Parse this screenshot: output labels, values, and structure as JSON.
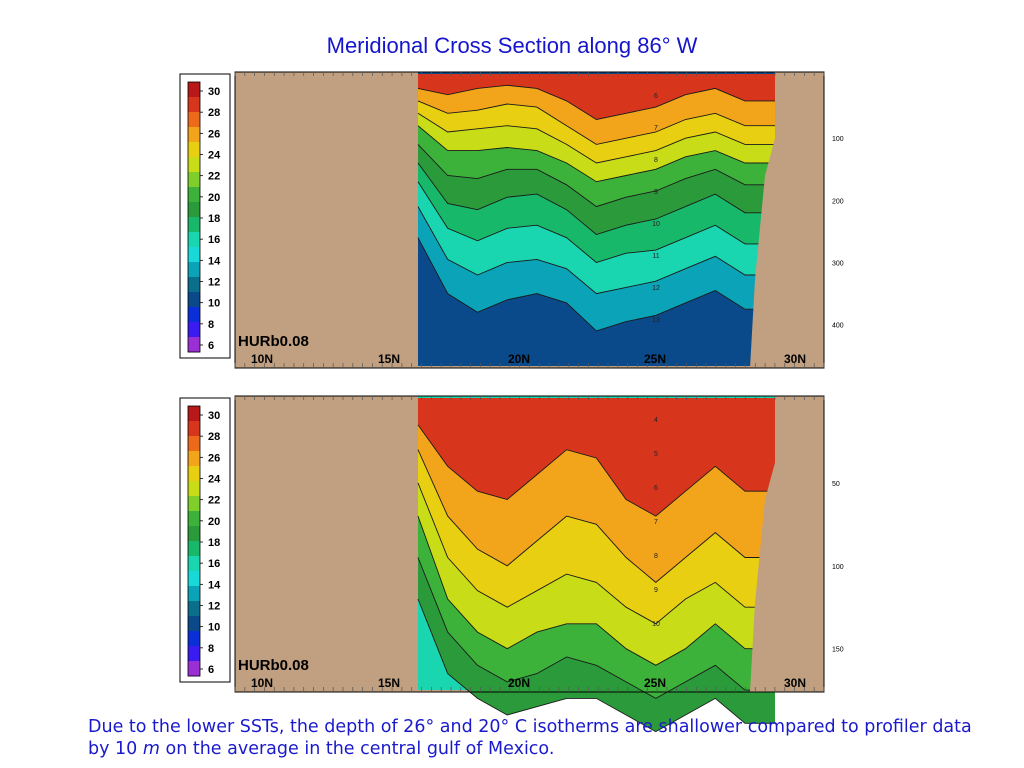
{
  "title": "Meridional Cross Section along 86° W",
  "caption": {
    "before": "Due to the lower SSTs, the depth of 26° and 20° C isotherms are shallower compared to profiler data by 10 ",
    "unit": "m",
    "after": " on the average in the central gulf of Mexico."
  },
  "colors": {
    "land": "#c0a080",
    "text_blue": "#1a1acc",
    "colorbar": [
      "#9b2fd6",
      "#3b1cf0",
      "#0a2ed8",
      "#0a4a8a",
      "#0a6f8a",
      "#0aa3b8",
      "#19d8d8",
      "#1ad6b0",
      "#18b86a",
      "#2a9a3a",
      "#3cb23a",
      "#7fce2a",
      "#c8dc18",
      "#e8cf12",
      "#f2a41a",
      "#ec6a1a",
      "#d8361c",
      "#b81818"
    ]
  },
  "chart_data": [
    {
      "type": "heatmap",
      "label": "HURb0.08",
      "x_ticks": [
        "10N",
        "15N",
        "20N",
        "25N",
        "30N"
      ],
      "colorbar_ticks": [
        30,
        28,
        26,
        24,
        22,
        20,
        18,
        16,
        14,
        12,
        10,
        8,
        6
      ],
      "depth_ticks": [
        100,
        200,
        300,
        400
      ],
      "contour_labels": [
        "6",
        "7",
        "8",
        "9",
        "10",
        "11",
        "12",
        "13"
      ],
      "isotherms": [
        {
          "temp": 28,
          "depth": [
            20,
            30,
            20,
            15,
            20,
            40,
            70,
            60,
            50,
            30,
            20,
            40
          ]
        },
        {
          "temp": 26,
          "depth": [
            40,
            60,
            55,
            45,
            50,
            80,
            110,
            100,
            90,
            70,
            60,
            80
          ]
        },
        {
          "temp": 24,
          "depth": [
            60,
            90,
            85,
            80,
            85,
            110,
            140,
            130,
            120,
            100,
            90,
            110
          ]
        },
        {
          "temp": 22,
          "depth": [
            80,
            120,
            120,
            115,
            120,
            140,
            170,
            160,
            150,
            130,
            120,
            140
          ]
        },
        {
          "temp": 20,
          "depth": [
            110,
            160,
            165,
            150,
            150,
            175,
            210,
            195,
            185,
            165,
            150,
            175
          ]
        },
        {
          "temp": 18,
          "depth": [
            140,
            205,
            215,
            195,
            190,
            215,
            255,
            240,
            230,
            210,
            190,
            220
          ]
        },
        {
          "temp": 16,
          "depth": [
            170,
            245,
            265,
            245,
            240,
            260,
            300,
            285,
            280,
            260,
            240,
            270
          ]
        },
        {
          "temp": 14,
          "depth": [
            210,
            295,
            320,
            300,
            295,
            310,
            350,
            340,
            330,
            310,
            290,
            320
          ]
        },
        {
          "temp": 12,
          "depth": [
            260,
            350,
            380,
            360,
            350,
            365,
            410,
            395,
            385,
            365,
            345,
            375
          ]
        }
      ]
    },
    {
      "type": "heatmap",
      "label": "HURb0.08",
      "x_ticks": [
        "10N",
        "15N",
        "20N",
        "25N",
        "30N"
      ],
      "colorbar_ticks": [
        30,
        28,
        26,
        24,
        22,
        20,
        18,
        16,
        14,
        12,
        10,
        8,
        6
      ],
      "depth_ticks": [
        50,
        100,
        150
      ],
      "contour_labels": [
        "4",
        "5",
        "6",
        "7",
        "8",
        "9",
        "10"
      ],
      "isotherms": [
        {
          "temp": 28,
          "depth": [
            15,
            40,
            55,
            60,
            45,
            30,
            35,
            60,
            70,
            55,
            40,
            55
          ]
        },
        {
          "temp": 26,
          "depth": [
            30,
            70,
            90,
            100,
            85,
            70,
            75,
            95,
            110,
            95,
            80,
            95
          ]
        },
        {
          "temp": 24,
          "depth": [
            50,
            95,
            115,
            125,
            115,
            105,
            110,
            125,
            135,
            120,
            110,
            125
          ]
        },
        {
          "temp": 22,
          "depth": [
            70,
            120,
            140,
            150,
            140,
            135,
            135,
            150,
            160,
            150,
            135,
            150
          ]
        },
        {
          "temp": 20,
          "depth": [
            95,
            140,
            160,
            170,
            165,
            155,
            160,
            170,
            180,
            170,
            160,
            175
          ]
        },
        {
          "temp": 18,
          "depth": [
            120,
            165,
            180,
            190,
            185,
            180,
            180,
            190,
            200,
            190,
            180,
            195
          ]
        }
      ]
    }
  ]
}
